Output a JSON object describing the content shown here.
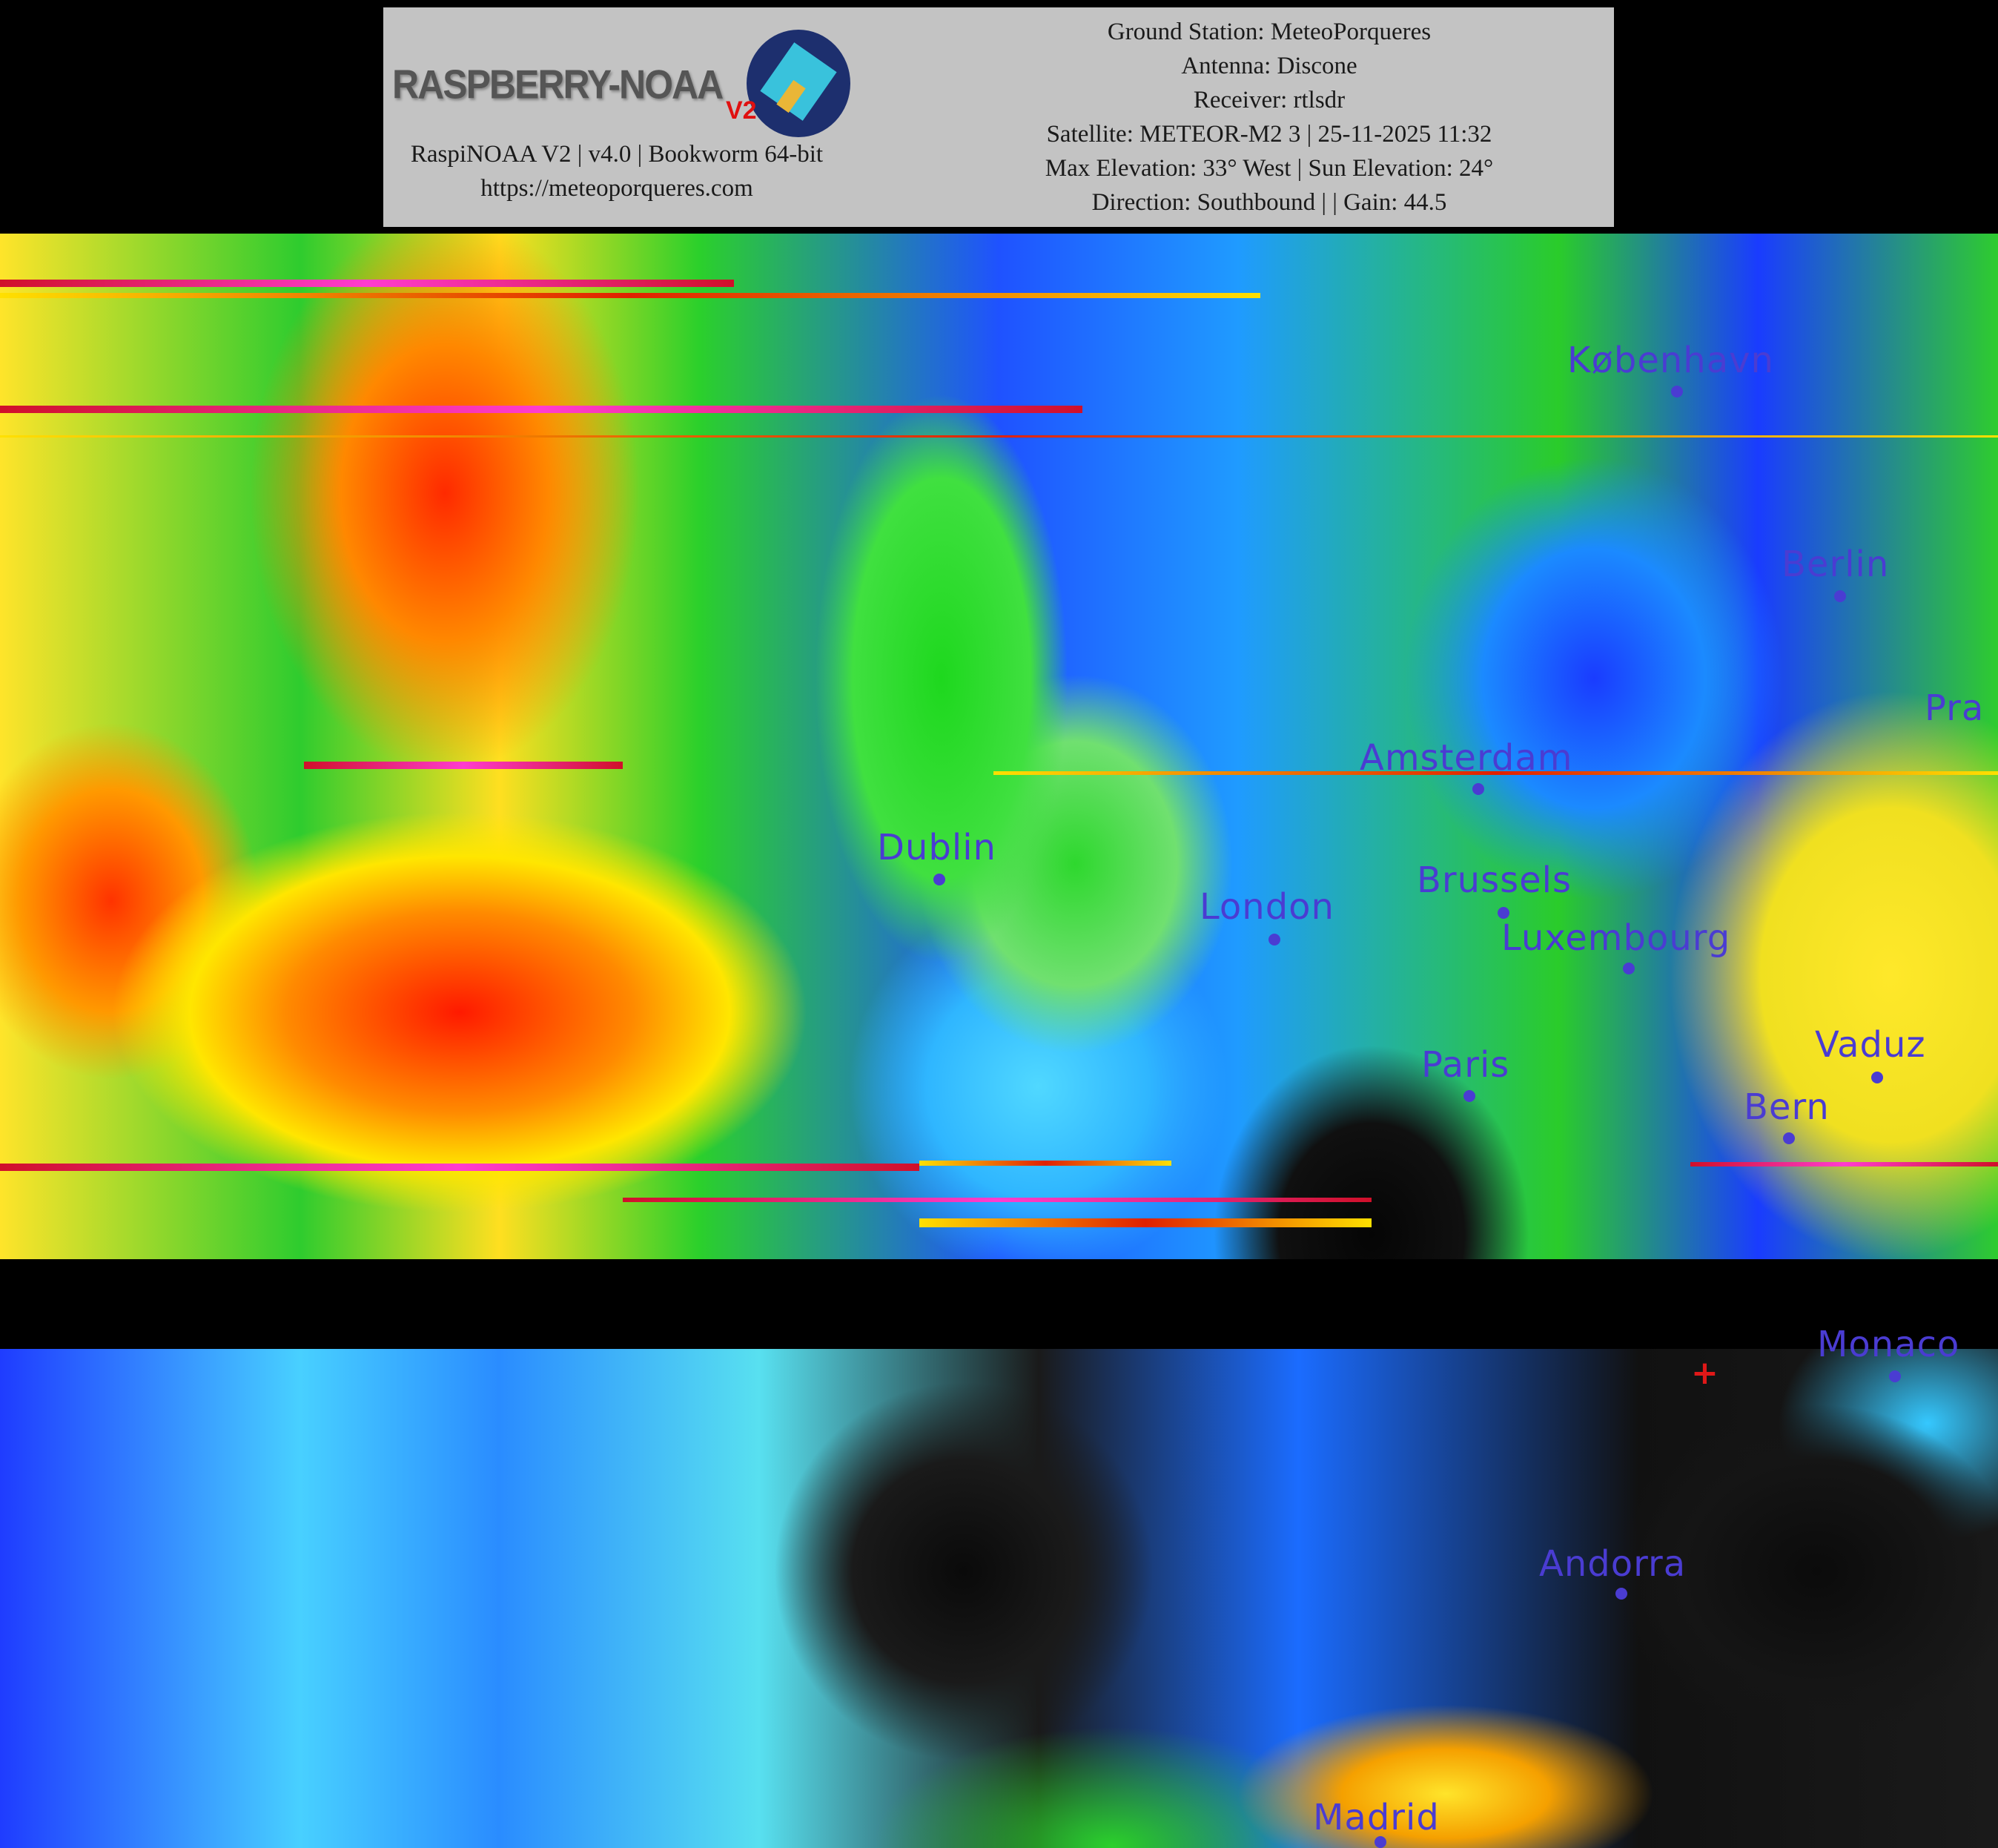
{
  "header": {
    "logo": {
      "text": "RASPBERRY-NOAA",
      "version_badge": "V2"
    },
    "software": "RaspiNOAA V2 | v4.0 | Bookworm 64-bit",
    "website": "https://meteoporqueres.com",
    "ground_station": "Ground Station: MeteoPorqueres",
    "antenna": "Antenna: Discone",
    "receiver": "Receiver: rtlsdr",
    "satellite": "Satellite: METEOR-M2 3 | 25-11-2025 11:32",
    "elevation": "Max Elevation: 33° West | Sun Elevation: 24°",
    "direction": "Direction: Southbound | | Gain: 44.5"
  },
  "map": {
    "label_color": "#4a3cd2",
    "cities": [
      {
        "name": "København"
      },
      {
        "name": "Berlin"
      },
      {
        "name": "Pra"
      },
      {
        "name": "Amsterdam"
      },
      {
        "name": "Dublin"
      },
      {
        "name": "London"
      },
      {
        "name": "Brussels"
      },
      {
        "name": "Luxembourg"
      },
      {
        "name": "Paris"
      },
      {
        "name": "Vaduz"
      },
      {
        "name": "Bern"
      },
      {
        "name": "Monaco"
      },
      {
        "name": "Andorra"
      },
      {
        "name": "Madrid"
      }
    ],
    "station_marker_icon": "red-cross"
  }
}
